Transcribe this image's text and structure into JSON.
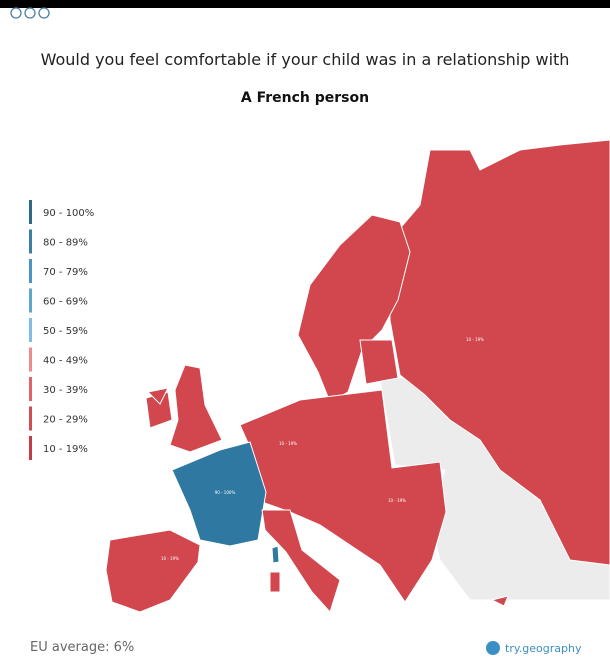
{
  "header": {
    "title": "Would you feel comfortable if your child was in a relationship  with",
    "subtitle": "A French person"
  },
  "legend": {
    "items": [
      {
        "label": "90 - 100%",
        "color": "#2d6a8a"
      },
      {
        "label": "80 - 89%",
        "color": "#3a7fa8"
      },
      {
        "label": "70 - 79%",
        "color": "#4b93c2"
      },
      {
        "label": "60 - 69%",
        "color": "#5ea5d2"
      },
      {
        "label": "50 - 59%",
        "color": "#7fbde6"
      },
      {
        "label": "40 - 49%",
        "color": "#ec8a8e"
      },
      {
        "label": "30 - 39%",
        "color": "#e0636a"
      },
      {
        "label": "20 - 29%",
        "color": "#d24c54"
      },
      {
        "label": "10 - 19%",
        "color": "#c43c45"
      }
    ]
  },
  "map": {
    "labels": [
      "10 - 19%",
      "10 - 19%",
      "90 - 100%",
      "10 - 19%",
      "10 - 19%"
    ]
  },
  "footer": {
    "eu_average": "EU average: 6%",
    "source": "try.geography"
  }
}
